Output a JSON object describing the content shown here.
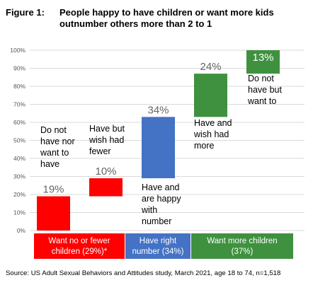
{
  "figure_label": "Figure 1:",
  "title": "People happy to have children or want more kids outnumber others more than 2 to 1",
  "source": "Source: US Adult Sexual Behaviors and Attitudes study, March 2021, age 18 to 74, n=1,518",
  "colors": {
    "red": "#ff0000",
    "blue": "#4472c4",
    "green": "#3f913f",
    "grid": "#d9d9d9",
    "axis_text": "#555555",
    "value_text": "#666666"
  },
  "chart_data": {
    "type": "bar",
    "subtype": "waterfall",
    "ylim": [
      0,
      100
    ],
    "y_ticks": [
      "0%",
      "10%",
      "20%",
      "30%",
      "40%",
      "50%",
      "60%",
      "70%",
      "80%",
      "90%",
      "100%"
    ],
    "grid": true,
    "bars": [
      {
        "label": [
          "Do not",
          "have nor",
          "want to",
          "have"
        ],
        "value": 19,
        "base": 0,
        "value_label": "19%",
        "color": "red"
      },
      {
        "label": [
          "Have but",
          "wish had",
          "fewer"
        ],
        "value": 10,
        "base": 19,
        "value_label": "10%",
        "color": "red"
      },
      {
        "label": [
          "Have and",
          "are happy",
          "with",
          "number"
        ],
        "value": 34,
        "base": 29,
        "value_label": "34%",
        "color": "blue"
      },
      {
        "label": [
          "Have and",
          "wish had",
          "more"
        ],
        "value": 24,
        "base": 63,
        "value_label": "24%",
        "color": "green"
      },
      {
        "label": [
          "Do not",
          "have but",
          "want to"
        ],
        "value": 13,
        "base": 87,
        "value_label": "13%",
        "color": "green",
        "value_inside": true
      }
    ],
    "groups": [
      {
        "label": [
          "Want no or fewer",
          "children (29%)*"
        ],
        "value": 29,
        "color": "red"
      },
      {
        "label": [
          "Have right",
          "number (34%)"
        ],
        "value": 34,
        "color": "blue"
      },
      {
        "label": [
          "Want more children",
          "(37%)"
        ],
        "value": 37,
        "color": "green"
      }
    ]
  }
}
